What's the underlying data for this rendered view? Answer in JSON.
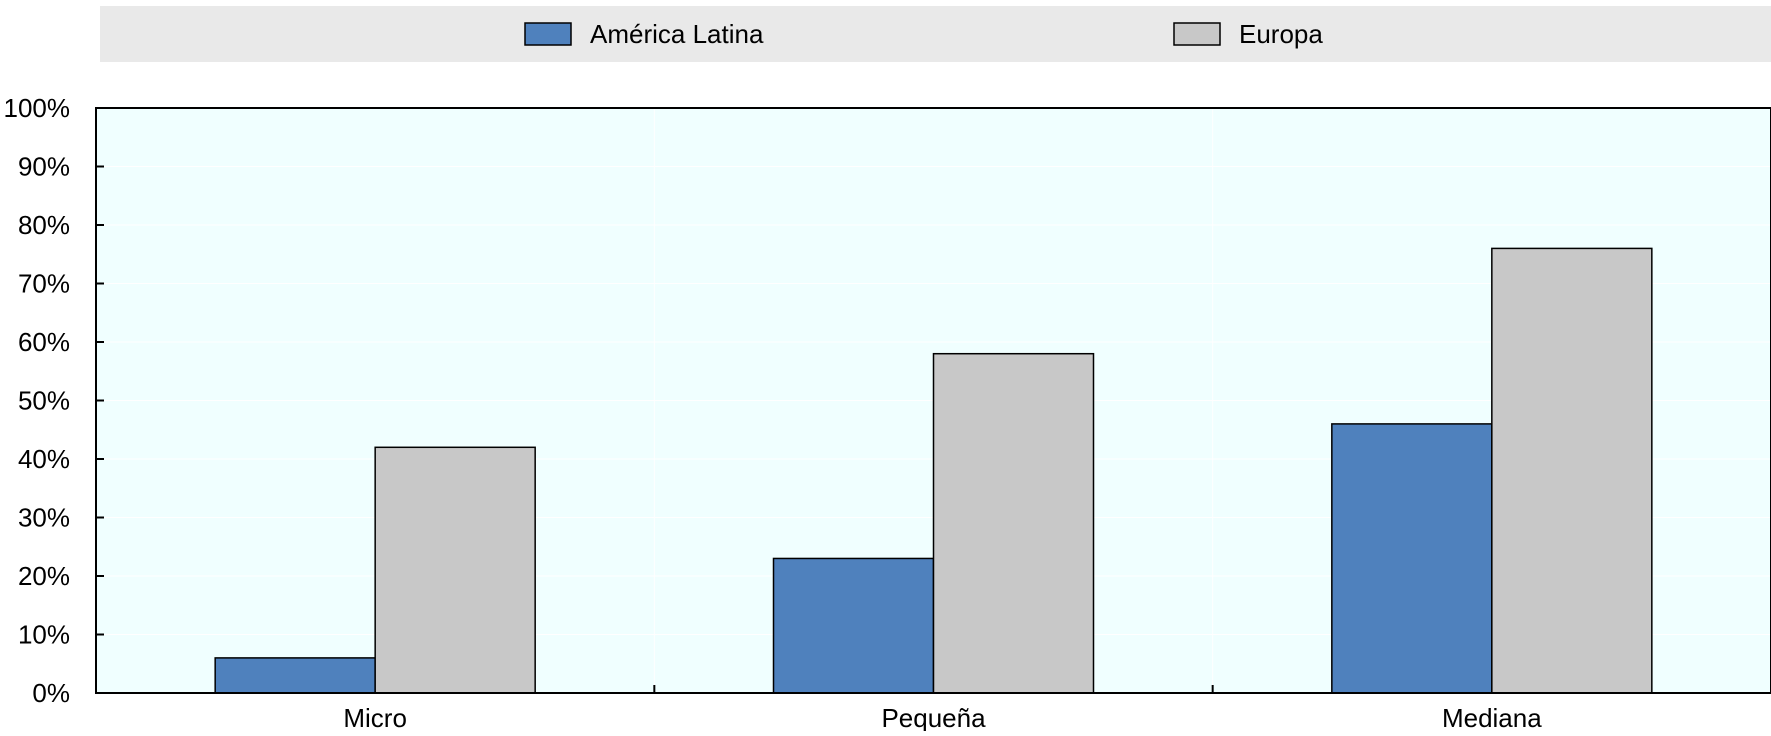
{
  "chart_data": {
    "type": "bar",
    "categories": [
      "Micro",
      "Pequeña",
      "Mediana"
    ],
    "series": [
      {
        "name": "América Latina",
        "color": "#4f81bd",
        "values": [
          6,
          23,
          46
        ]
      },
      {
        "name": "Europa",
        "color": "#c8c8c8",
        "values": [
          42,
          58,
          76
        ]
      }
    ],
    "yticks": [
      "0%",
      "10%",
      "20%",
      "30%",
      "40%",
      "50%",
      "60%",
      "70%",
      "80%",
      "90%",
      "100%"
    ],
    "ylim": [
      0,
      100
    ],
    "grid": true,
    "legend_position": "top",
    "plot_background": "#f0ffff",
    "legend_background": "#e9e9e9"
  }
}
